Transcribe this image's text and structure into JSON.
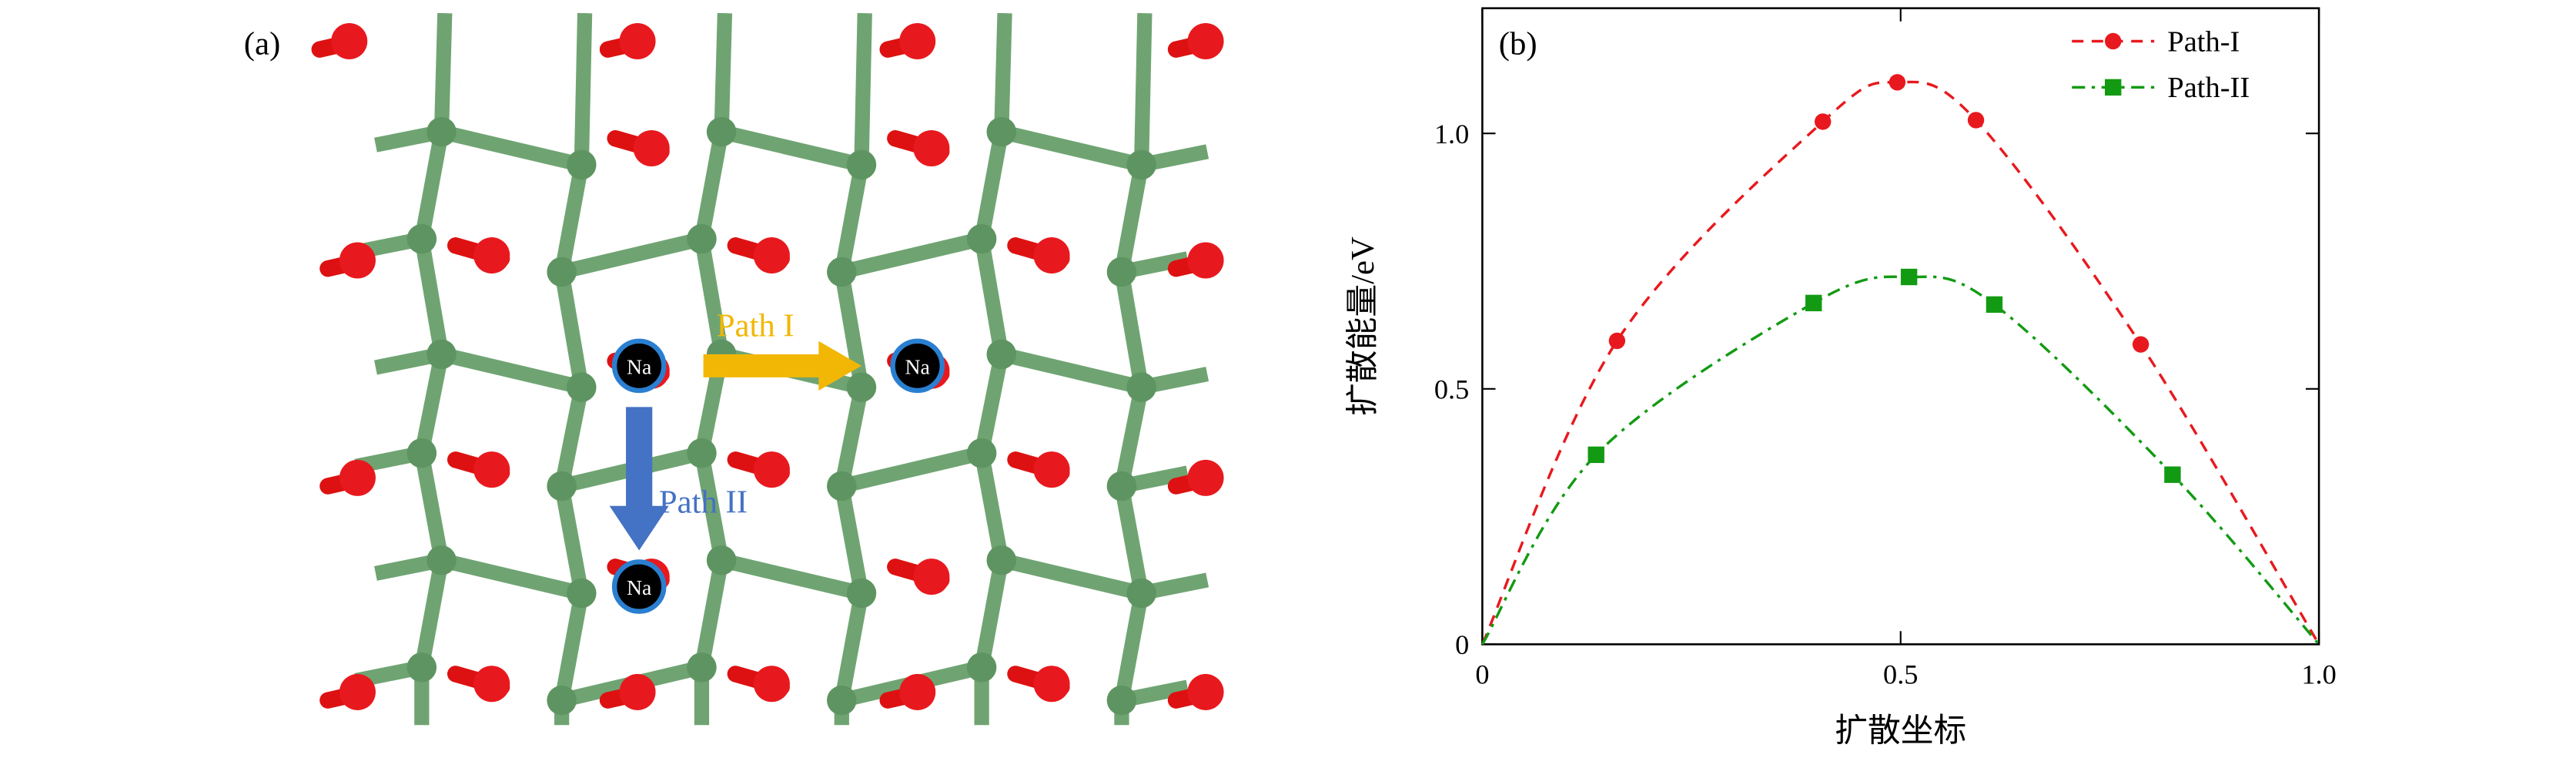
{
  "panel_a": {
    "label": "(a)",
    "path_labels": [
      "Path I",
      "Path II"
    ],
    "atoms": [
      "Na",
      "Na",
      "Na"
    ]
  },
  "chart_data": {
    "type": "line",
    "panel_label": "(b)",
    "x_label": "扩散坐标",
    "y_label": "扩散能量/eV",
    "xlim": [
      0,
      1
    ],
    "ylim": [
      0,
      1.245
    ],
    "xticks": [
      0,
      0.5,
      {
        "value": 1,
        "label": "1.0"
      }
    ],
    "yticks": [
      0,
      0.5,
      {
        "value": 1,
        "label": "1.0"
      }
    ],
    "legend": "upper right",
    "series": [
      {
        "name": "Path-I",
        "color": "#e8191e",
        "marker": "circle",
        "dash": "dashed",
        "x": [
          0,
          0.161,
          0.407,
          0.496,
          0.59,
          0.787,
          1
        ],
        "values": [
          0,
          0.594,
          1.023,
          1.1,
          1.026,
          0.587,
          0
        ]
      },
      {
        "name": "Path-II",
        "color": "#139a13",
        "marker": "square",
        "dash": "dashdot",
        "x": [
          0,
          0.136,
          0.396,
          0.51,
          0.612,
          0.825,
          1
        ],
        "values": [
          0,
          0.371,
          0.668,
          0.719,
          0.665,
          0.332,
          0
        ]
      }
    ]
  }
}
